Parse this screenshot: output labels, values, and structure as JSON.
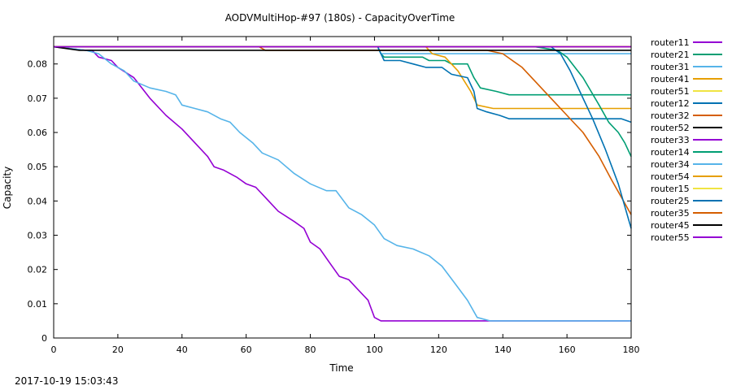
{
  "footer": {
    "timestamp": "2017-10-19 15:03:43"
  },
  "chart_data": {
    "type": "line",
    "title": "AODVMultiHop-#97 (180s) - CapacityOverTime",
    "xlabel": "Time",
    "ylabel": "Capacity",
    "xlim": [
      0,
      180
    ],
    "ylim": [
      0,
      0.088
    ],
    "xticks": [
      "0",
      "20",
      "40",
      "60",
      "80",
      "100",
      "120",
      "140",
      "160",
      "180"
    ],
    "yticks": [
      "0",
      "0.01",
      "0.02",
      "0.03",
      "0.04",
      "0.05",
      "0.06",
      "0.07",
      "0.08"
    ],
    "grid": false,
    "legend_position": "outside-right",
    "series": [
      {
        "name": "router11",
        "color": "#9400d3",
        "points": [
          [
            0,
            0.085
          ],
          [
            180,
            0.085
          ]
        ]
      },
      {
        "name": "router21",
        "color": "#009e73",
        "points": [
          [
            0,
            0.085
          ],
          [
            101,
            0.085
          ],
          [
            102,
            0.083
          ],
          [
            103,
            0.082
          ],
          [
            115,
            0.082
          ],
          [
            117,
            0.081
          ],
          [
            122,
            0.081
          ],
          [
            124,
            0.08
          ],
          [
            129,
            0.08
          ],
          [
            131,
            0.076
          ],
          [
            133,
            0.073
          ],
          [
            138,
            0.072
          ],
          [
            142,
            0.071
          ],
          [
            180,
            0.071
          ]
        ]
      },
      {
        "name": "router31",
        "color": "#56b4e9",
        "points": [
          [
            0,
            0.085
          ],
          [
            101,
            0.085
          ],
          [
            102,
            0.083
          ],
          [
            180,
            0.083
          ]
        ]
      },
      {
        "name": "router41",
        "color": "#e69f00",
        "points": [
          [
            0,
            0.085
          ],
          [
            116,
            0.085
          ],
          [
            118,
            0.083
          ],
          [
            122,
            0.082
          ],
          [
            126,
            0.078
          ],
          [
            130,
            0.072
          ],
          [
            132,
            0.068
          ],
          [
            137,
            0.067
          ],
          [
            180,
            0.067
          ]
        ]
      },
      {
        "name": "router51",
        "color": "#f0e442",
        "points": [
          [
            0,
            0.085
          ],
          [
            180,
            0.085
          ]
        ]
      },
      {
        "name": "router12",
        "color": "#0072b2",
        "points": [
          [
            0,
            0.085
          ],
          [
            101,
            0.085
          ],
          [
            102,
            0.083
          ],
          [
            103,
            0.081
          ],
          [
            108,
            0.081
          ],
          [
            112,
            0.08
          ],
          [
            116,
            0.079
          ],
          [
            121,
            0.079
          ],
          [
            124,
            0.077
          ],
          [
            129,
            0.076
          ],
          [
            131,
            0.072
          ],
          [
            132,
            0.067
          ],
          [
            135,
            0.066
          ],
          [
            139,
            0.065
          ],
          [
            142,
            0.064
          ],
          [
            177,
            0.064
          ],
          [
            180,
            0.063
          ]
        ]
      },
      {
        "name": "router32",
        "color": "#d55e00",
        "points": [
          [
            0,
            0.085
          ],
          [
            64,
            0.085
          ],
          [
            66,
            0.084
          ],
          [
            135,
            0.084
          ],
          [
            140,
            0.083
          ],
          [
            146,
            0.079
          ],
          [
            150,
            0.075
          ],
          [
            155,
            0.07
          ],
          [
            160,
            0.065
          ],
          [
            165,
            0.06
          ],
          [
            170,
            0.053
          ],
          [
            174,
            0.046
          ],
          [
            177,
            0.041
          ],
          [
            180,
            0.036
          ]
        ]
      },
      {
        "name": "router52",
        "color": "#000000",
        "points": [
          [
            0,
            0.085
          ],
          [
            180,
            0.085
          ]
        ]
      },
      {
        "name": "router33",
        "color": "#9400d3",
        "points": [
          [
            0,
            0.085
          ],
          [
            10,
            0.084
          ],
          [
            12,
            0.084
          ],
          [
            14,
            0.082
          ],
          [
            18,
            0.081
          ],
          [
            20,
            0.079
          ],
          [
            25,
            0.076
          ],
          [
            30,
            0.07
          ],
          [
            35,
            0.065
          ],
          [
            40,
            0.061
          ],
          [
            45,
            0.056
          ],
          [
            48,
            0.053
          ],
          [
            50,
            0.05
          ],
          [
            53,
            0.049
          ],
          [
            57,
            0.047
          ],
          [
            60,
            0.045
          ],
          [
            63,
            0.044
          ],
          [
            66,
            0.041
          ],
          [
            70,
            0.037
          ],
          [
            75,
            0.034
          ],
          [
            78,
            0.032
          ],
          [
            80,
            0.028
          ],
          [
            83,
            0.026
          ],
          [
            86,
            0.022
          ],
          [
            89,
            0.018
          ],
          [
            92,
            0.017
          ],
          [
            95,
            0.014
          ],
          [
            98,
            0.011
          ],
          [
            100,
            0.006
          ],
          [
            102,
            0.005
          ],
          [
            180,
            0.005
          ]
        ]
      },
      {
        "name": "router14",
        "color": "#009e73",
        "points": [
          [
            0,
            0.085
          ],
          [
            150,
            0.085
          ],
          [
            157,
            0.084
          ],
          [
            160,
            0.082
          ],
          [
            165,
            0.076
          ],
          [
            170,
            0.068
          ],
          [
            173,
            0.063
          ],
          [
            176,
            0.06
          ],
          [
            178,
            0.057
          ],
          [
            180,
            0.053
          ]
        ]
      },
      {
        "name": "router34",
        "color": "#56b4e9",
        "points": [
          [
            0,
            0.085
          ],
          [
            10,
            0.084
          ],
          [
            14,
            0.083
          ],
          [
            18,
            0.08
          ],
          [
            22,
            0.078
          ],
          [
            25,
            0.075
          ],
          [
            30,
            0.073
          ],
          [
            35,
            0.072
          ],
          [
            38,
            0.071
          ],
          [
            40,
            0.068
          ],
          [
            44,
            0.067
          ],
          [
            48,
            0.066
          ],
          [
            52,
            0.064
          ],
          [
            55,
            0.063
          ],
          [
            58,
            0.06
          ],
          [
            62,
            0.057
          ],
          [
            65,
            0.054
          ],
          [
            70,
            0.052
          ],
          [
            75,
            0.048
          ],
          [
            80,
            0.045
          ],
          [
            85,
            0.043
          ],
          [
            88,
            0.043
          ],
          [
            92,
            0.038
          ],
          [
            96,
            0.036
          ],
          [
            100,
            0.033
          ],
          [
            103,
            0.029
          ],
          [
            107,
            0.027
          ],
          [
            112,
            0.026
          ],
          [
            117,
            0.024
          ],
          [
            121,
            0.021
          ],
          [
            125,
            0.016
          ],
          [
            129,
            0.011
          ],
          [
            132,
            0.006
          ],
          [
            136,
            0.005
          ],
          [
            180,
            0.005
          ]
        ]
      },
      {
        "name": "router54",
        "color": "#e69f00",
        "points": [
          [
            0,
            0.085
          ],
          [
            180,
            0.085
          ]
        ]
      },
      {
        "name": "router15",
        "color": "#f0e442",
        "points": [
          [
            0,
            0.085
          ],
          [
            180,
            0.085
          ]
        ]
      },
      {
        "name": "router25",
        "color": "#0072b2",
        "points": [
          [
            0,
            0.085
          ],
          [
            155,
            0.085
          ],
          [
            158,
            0.083
          ],
          [
            161,
            0.078
          ],
          [
            164,
            0.072
          ],
          [
            168,
            0.064
          ],
          [
            172,
            0.055
          ],
          [
            176,
            0.045
          ],
          [
            180,
            0.032
          ]
        ]
      },
      {
        "name": "router35",
        "color": "#d55e00",
        "points": [
          [
            0,
            0.085
          ],
          [
            180,
            0.085
          ]
        ]
      },
      {
        "name": "router45",
        "color": "#000000",
        "points": [
          [
            0,
            0.085
          ],
          [
            8,
            0.084
          ],
          [
            180,
            0.084
          ]
        ]
      },
      {
        "name": "router55",
        "color": "#9400d3",
        "points": [
          [
            0,
            0.085
          ],
          [
            180,
            0.085
          ]
        ]
      }
    ]
  }
}
